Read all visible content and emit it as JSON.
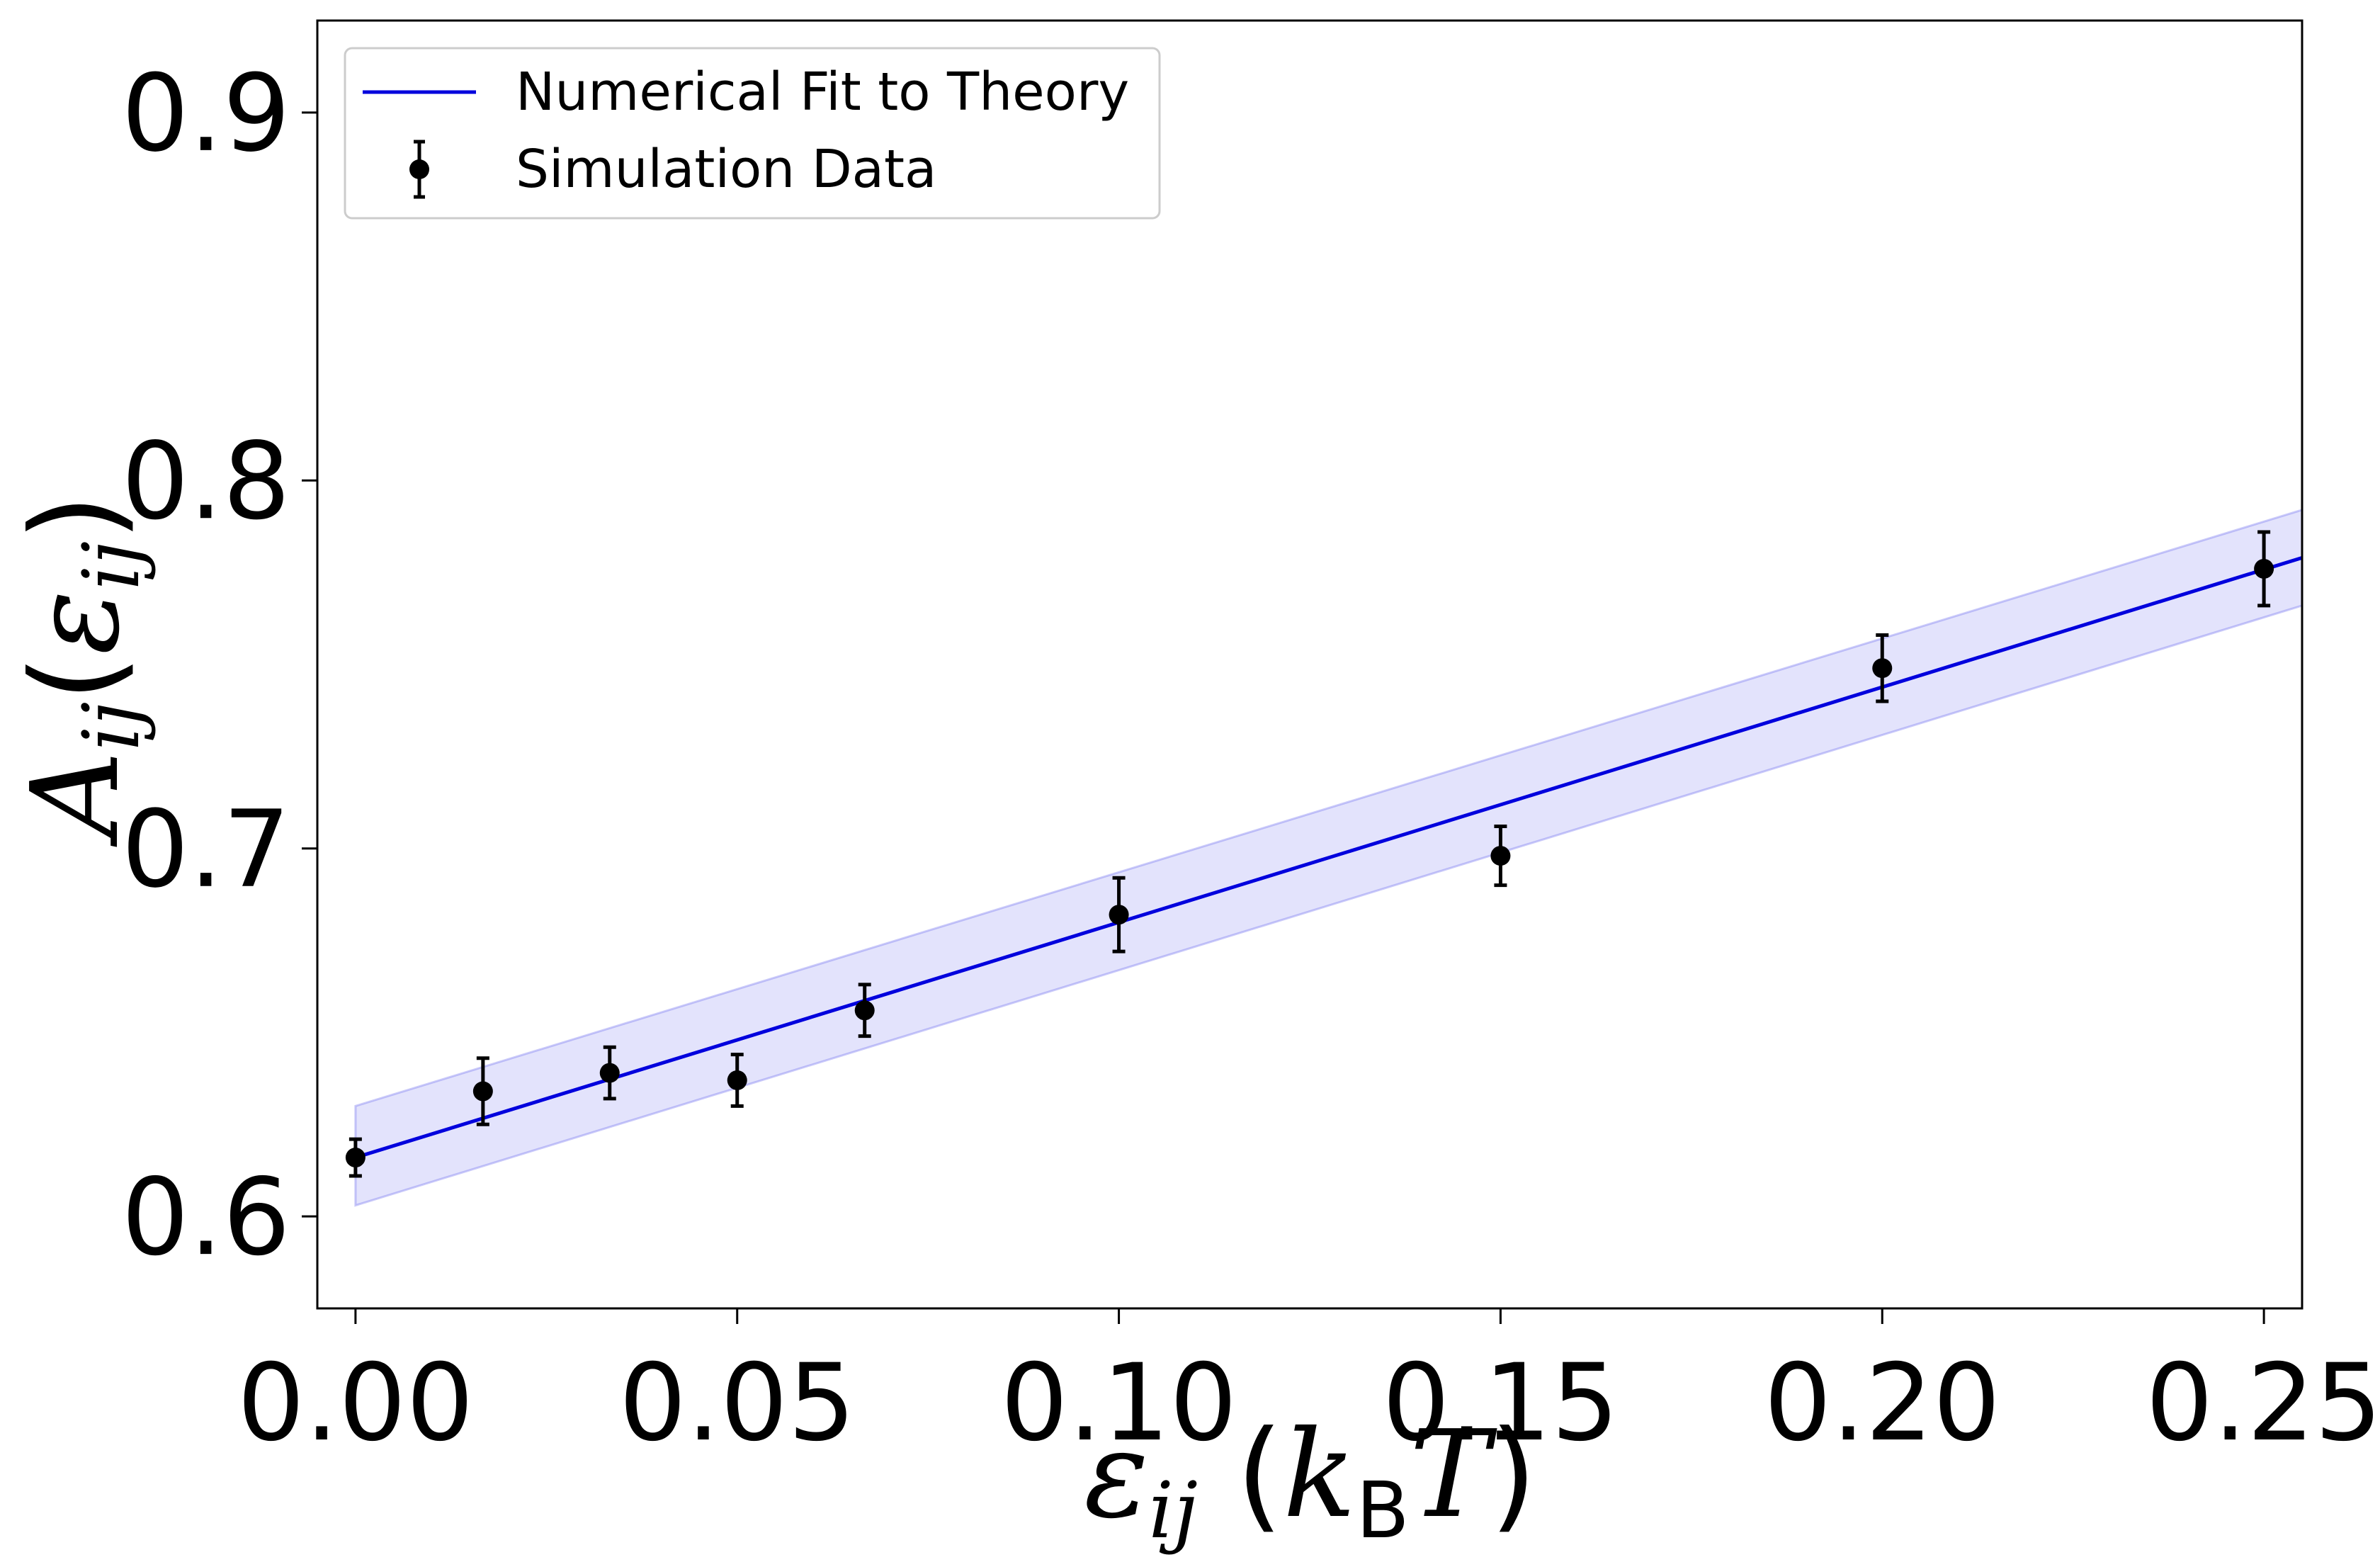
{
  "chart_data": {
    "type": "scatter",
    "xlabel": {
      "main": "ε",
      "sub": "ij",
      "open": " (",
      "k": "k",
      "ksub": "B",
      "T": "T",
      "close": ")"
    },
    "ylabel": {
      "main": "A",
      "sub": "ij",
      "open": "(",
      "eps": "ε",
      "epssub": "ij",
      "close": ")"
    },
    "xlim": [
      -0.005,
      0.255
    ],
    "ylim": [
      0.575,
      0.925
    ],
    "xticks": [
      0.0,
      0.05,
      0.1,
      0.15,
      0.2,
      0.25
    ],
    "xtick_labels": [
      "0.00",
      "0.05",
      "0.10",
      "0.15",
      "0.20",
      "0.25"
    ],
    "yticks": [
      0.6,
      0.7,
      0.8,
      0.9
    ],
    "ytick_labels": [
      "0.6",
      "0.7",
      "0.8",
      "0.9"
    ],
    "grid": false,
    "legend_position": "top-left",
    "series": [
      {
        "name": "Numerical Fit to Theory",
        "kind": "line",
        "color": "#0000dd",
        "x": [
          0.0,
          0.255
        ],
        "y": [
          0.616,
          0.779
        ],
        "band": {
          "x": [
            0.0,
            0.255
          ],
          "upper": [
            0.63,
            0.792
          ],
          "lower": [
            0.603,
            0.766
          ],
          "color": "#6666ee"
        }
      },
      {
        "name": "Simulation Data",
        "kind": "errorbar",
        "color": "#000000",
        "x": [
          0.0,
          0.0167,
          0.0333,
          0.05,
          0.0667,
          0.1,
          0.15,
          0.2,
          0.25
        ],
        "y": [
          0.616,
          0.634,
          0.639,
          0.637,
          0.656,
          0.682,
          0.698,
          0.749,
          0.776
        ],
        "yerr": [
          0.005,
          0.009,
          0.007,
          0.007,
          0.007,
          0.01,
          0.008,
          0.009,
          0.01
        ]
      }
    ]
  }
}
